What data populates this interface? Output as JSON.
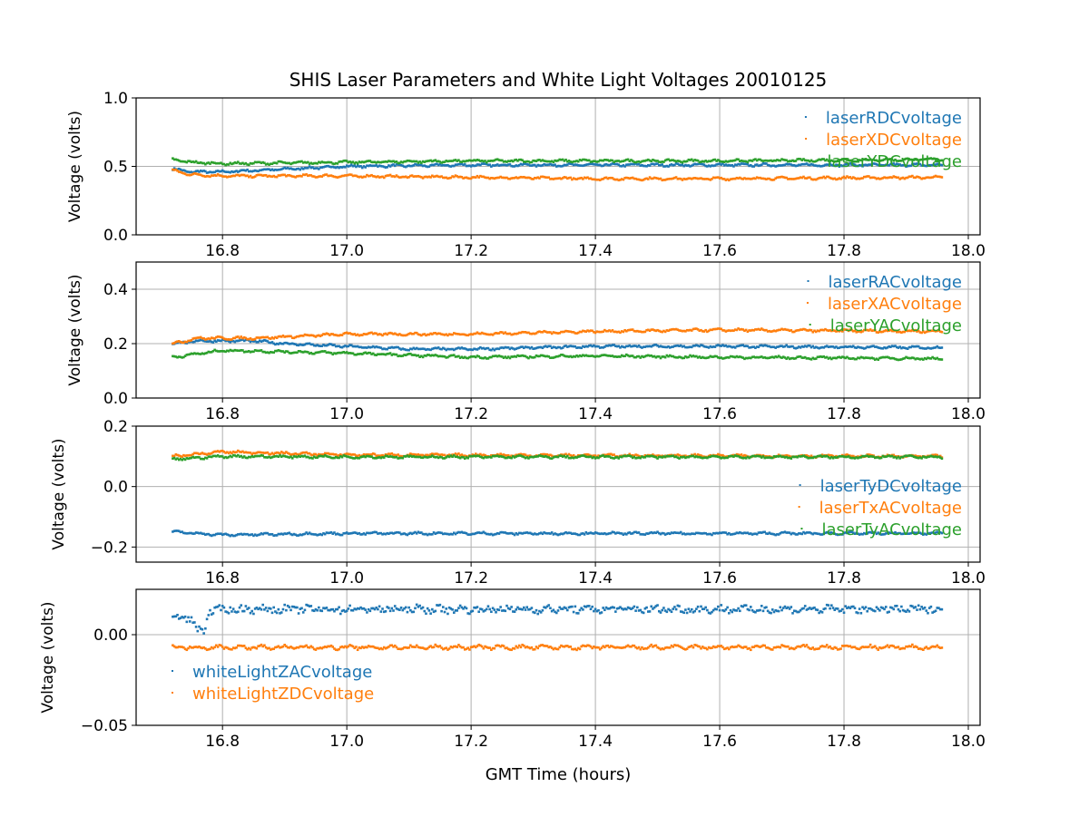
{
  "chart_data": {
    "type": "scatter",
    "title": "SHIS Laser Parameters and White Light Voltages 20010125",
    "xlabel": "GMT Time (hours)",
    "xlim": [
      16.661,
      18.019
    ],
    "xticks": [
      16.8,
      17.0,
      17.2,
      17.4,
      17.6,
      17.8,
      18.0
    ],
    "xtick_labels": [
      "16.8",
      "17.0",
      "17.2",
      "17.4",
      "17.6",
      "17.8",
      "18.0"
    ],
    "grid": true,
    "panels": [
      {
        "ylabel": "Voltage (volts)",
        "ylim": [
          0,
          1.0
        ],
        "yticks": [
          0,
          0.5,
          1.0
        ],
        "ytick_labels": [
          "0.0",
          "0.5",
          "1.0"
        ],
        "legend": "upper-right",
        "series": [
          {
            "name": "laserRDCvoltage",
            "color": "#1f77b4",
            "points": [
              [
                16.72,
                0.48
              ],
              [
                16.75,
                0.46
              ],
              [
                16.8,
                0.46
              ],
              [
                16.9,
                0.48
              ],
              [
                17.0,
                0.5
              ],
              [
                17.2,
                0.51
              ],
              [
                17.4,
                0.51
              ],
              [
                17.6,
                0.51
              ],
              [
                17.96,
                0.51
              ]
            ]
          },
          {
            "name": "laserXDCvoltage",
            "color": "#ff7f0e",
            "points": [
              [
                16.72,
                0.47
              ],
              [
                16.75,
                0.44
              ],
              [
                16.8,
                0.43
              ],
              [
                17.0,
                0.43
              ],
              [
                17.2,
                0.42
              ],
              [
                17.4,
                0.41
              ],
              [
                17.6,
                0.41
              ],
              [
                17.96,
                0.42
              ]
            ]
          },
          {
            "name": "laserYDCvoltage",
            "color": "#2ca02c",
            "points": [
              [
                16.72,
                0.55
              ],
              [
                16.75,
                0.53
              ],
              [
                16.8,
                0.52
              ],
              [
                17.0,
                0.53
              ],
              [
                17.2,
                0.54
              ],
              [
                17.4,
                0.54
              ],
              [
                17.6,
                0.54
              ],
              [
                17.96,
                0.55
              ]
            ]
          }
        ]
      },
      {
        "ylabel": "Voltage (volts)",
        "ylim": [
          0,
          0.5
        ],
        "yticks": [
          0,
          0.2,
          0.4
        ],
        "ytick_labels": [
          "0.0",
          "0.2",
          "0.4"
        ],
        "legend": "upper-right",
        "series": [
          {
            "name": "laserRACvoltage",
            "color": "#1f77b4",
            "points": [
              [
                16.72,
                0.2
              ],
              [
                16.76,
                0.21
              ],
              [
                16.85,
                0.21
              ],
              [
                16.9,
                0.2
              ],
              [
                17.0,
                0.19
              ],
              [
                17.1,
                0.18
              ],
              [
                17.2,
                0.18
              ],
              [
                17.4,
                0.19
              ],
              [
                17.6,
                0.19
              ],
              [
                17.96,
                0.185
              ]
            ]
          },
          {
            "name": "laserXACvoltage",
            "color": "#ff7f0e",
            "points": [
              [
                16.72,
                0.2
              ],
              [
                16.76,
                0.22
              ],
              [
                16.85,
                0.22
              ],
              [
                17.0,
                0.235
              ],
              [
                17.2,
                0.235
              ],
              [
                17.4,
                0.245
              ],
              [
                17.6,
                0.25
              ],
              [
                17.96,
                0.245
              ]
            ]
          },
          {
            "name": "laserYACvoltage",
            "color": "#2ca02c",
            "points": [
              [
                16.72,
                0.15
              ],
              [
                16.8,
                0.175
              ],
              [
                17.0,
                0.165
              ],
              [
                17.2,
                0.15
              ],
              [
                17.4,
                0.155
              ],
              [
                17.6,
                0.15
              ],
              [
                17.96,
                0.145
              ]
            ]
          }
        ]
      },
      {
        "ylabel": "Voltage (volts)",
        "ylim": [
          -0.25,
          0.2
        ],
        "yticks": [
          -0.2,
          0.0,
          0.2
        ],
        "ytick_labels": [
          "−0.2",
          "0.0",
          "0.2"
        ],
        "legend": "lower-right",
        "series": [
          {
            "name": "laserTyDCvoltage",
            "color": "#1f77b4",
            "points": [
              [
                16.72,
                -0.15
              ],
              [
                16.8,
                -0.16
              ],
              [
                17.0,
                -0.155
              ],
              [
                17.96,
                -0.155
              ]
            ]
          },
          {
            "name": "laserTxACvoltage",
            "color": "#ff7f0e",
            "points": [
              [
                16.72,
                0.1
              ],
              [
                16.8,
                0.115
              ],
              [
                17.0,
                0.105
              ],
              [
                17.96,
                0.1
              ]
            ]
          },
          {
            "name": "laserTyACvoltage",
            "color": "#2ca02c",
            "points": [
              [
                16.72,
                0.09
              ],
              [
                16.8,
                0.1
              ],
              [
                17.0,
                0.098
              ],
              [
                17.96,
                0.098
              ]
            ]
          }
        ]
      },
      {
        "ylabel": "Voltage (volts)",
        "ylim": [
          -0.05,
          0.025
        ],
        "yticks": [
          -0.05,
          0.0
        ],
        "ytick_labels": [
          "−0.05",
          "0.00"
        ],
        "legend": "center-left",
        "series": [
          {
            "name": "whiteLightZACvoltage",
            "color": "#1f77b4",
            "points": [
              [
                16.72,
                0.009
              ],
              [
                16.75,
                0.009
              ],
              [
                16.76,
                0.003
              ],
              [
                16.77,
                0.002
              ],
              [
                16.78,
                0.013
              ],
              [
                16.8,
                0.014
              ],
              [
                17.96,
                0.014
              ]
            ]
          },
          {
            "name": "whiteLightZDCvoltage",
            "color": "#ff7f0e",
            "points": [
              [
                16.72,
                -0.007
              ],
              [
                17.96,
                -0.007
              ]
            ]
          }
        ]
      }
    ]
  }
}
